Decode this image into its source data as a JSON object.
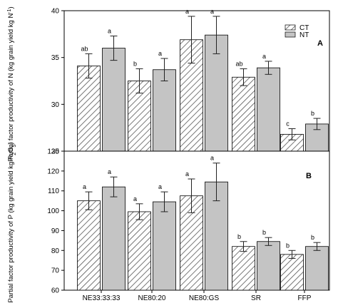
{
  "chart_data": [
    {
      "type": "bar",
      "panel_label": "A",
      "ylabel_main": "Partial factor productivity of N (kg grain yield kg N",
      "ylabel_sup": "-1",
      "ylabel_end": ")",
      "ylim": [
        25,
        40
      ],
      "yticks": [
        25,
        30,
        35,
        40
      ],
      "categories": [
        "NE33:33:33",
        "NE80:20",
        "NE80:GS",
        "SR",
        "FFP"
      ],
      "series": [
        {
          "name": "CT",
          "values": [
            34.1,
            32.5,
            36.9,
            32.9,
            26.8
          ],
          "errors": [
            1.3,
            1.3,
            2.5,
            0.9,
            0.6
          ],
          "letters": [
            "ab",
            "b",
            "a",
            "ab",
            "c"
          ]
        },
        {
          "name": "NT",
          "values": [
            36.0,
            33.7,
            37.4,
            33.9,
            27.9
          ],
          "errors": [
            1.3,
            1.2,
            2.0,
            0.7,
            0.6
          ],
          "letters": [
            "a",
            "a",
            "a",
            "a",
            "b"
          ]
        }
      ],
      "legend_position": "top-right",
      "colors": {
        "CT": "#ffffff",
        "NT": "#c4c4c4",
        "hatch": "#555555"
      }
    },
    {
      "type": "bar",
      "panel_label": "B",
      "ylabel_main": "Partial factor productivity of P (kg grain yield kg P",
      "ylabel_sub": "2",
      "ylabel_mid": "O",
      "ylabel_sub2": "5",
      "ylabel_end": ")",
      "ylim": [
        60,
        130
      ],
      "yticks": [
        60,
        70,
        80,
        90,
        100,
        110,
        120,
        130
      ],
      "categories": [
        "NE33:33:33",
        "NE80:20",
        "NE80:GS",
        "SR",
        "FFP"
      ],
      "series": [
        {
          "name": "CT",
          "values": [
            105,
            99.5,
            107.5,
            82,
            78
          ],
          "errors": [
            4.5,
            4,
            8.5,
            2.5,
            2
          ],
          "letters": [
            "a",
            "a",
            "a",
            "b",
            "b"
          ]
        },
        {
          "name": "NT",
          "values": [
            112,
            104.5,
            114.5,
            84.5,
            82
          ],
          "errors": [
            5,
            5,
            9.5,
            2,
            2
          ],
          "letters": [
            "a",
            "a",
            "a",
            "b",
            "b"
          ]
        }
      ],
      "colors": {
        "CT": "#ffffff",
        "NT": "#c4c4c4",
        "hatch": "#555555"
      }
    }
  ]
}
